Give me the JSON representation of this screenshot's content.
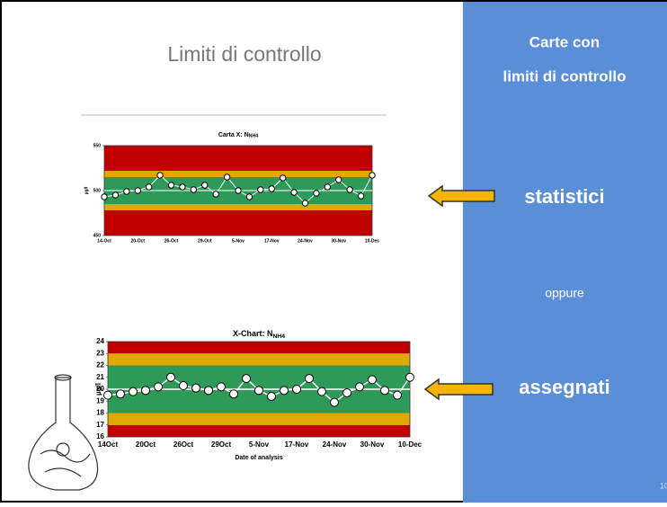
{
  "slide": {
    "title": "Limiti di controllo",
    "side_title_1": "Carte con",
    "side_title_2": "limiti di controllo",
    "option_1": "statistici",
    "separator": "oppure",
    "option_2": "assegnati",
    "page_number": "10"
  },
  "chart_data": [
    {
      "type": "line",
      "title": "Carta X: N",
      "title_sub": "NH4",
      "ylabel": "µg/l",
      "ylim": [
        450,
        550
      ],
      "yticks": [
        450,
        500,
        550
      ],
      "categories": [
        "14-Oct",
        null,
        null,
        "20-Oct",
        null,
        null,
        "26-Oct",
        null,
        null,
        "29-Oct",
        null,
        null,
        "5-Nov",
        null,
        null,
        "17-Nov",
        null,
        null,
        "24-Nov",
        null,
        null,
        "30-Nov",
        null,
        null,
        "10-Dec"
      ],
      "values": [
        493,
        495,
        499,
        500,
        504,
        517,
        506,
        504,
        501,
        506,
        496,
        515,
        500,
        493,
        501,
        502,
        514,
        498,
        486,
        497,
        504,
        512,
        501,
        494,
        517
      ],
      "center_line": 500,
      "bands": [
        {
          "from": 450,
          "to": 478,
          "color": "#c00000"
        },
        {
          "from": 478,
          "to": 485,
          "color": "#e0a800"
        },
        {
          "from": 485,
          "to": 515,
          "color": "#2e9a5a"
        },
        {
          "from": 515,
          "to": 522,
          "color": "#e0a800"
        },
        {
          "from": 522,
          "to": 550,
          "color": "#c00000"
        }
      ]
    },
    {
      "type": "line",
      "title": "X-Chart: N",
      "title_sub": "NH4",
      "ylabel": "µg/l",
      "xlabel": "Date of analysis",
      "ylim": [
        16,
        24
      ],
      "yticks": [
        16,
        17,
        18,
        19,
        20,
        21,
        22,
        23,
        24
      ],
      "categories": [
        "14Oct",
        null,
        null,
        "20Oct",
        null,
        null,
        "26Oct",
        null,
        null,
        "29Oct",
        null,
        null,
        "5-Nov",
        null,
        null,
        "17-Nov",
        null,
        null,
        "24-Nov",
        null,
        null,
        "30-Nov",
        null,
        null,
        "10-Dec"
      ],
      "values": [
        19.5,
        19.6,
        19.8,
        19.9,
        20.2,
        21,
        20.3,
        20.1,
        19.9,
        20.2,
        19.6,
        20.9,
        19.9,
        19.4,
        19.9,
        20,
        20.9,
        19.8,
        18.9,
        19.7,
        20.2,
        20.8,
        19.9,
        19.5,
        21
      ],
      "center_line": 20,
      "bands": [
        {
          "from": 16,
          "to": 17,
          "color": "#c00000"
        },
        {
          "from": 17,
          "to": 18,
          "color": "#e0a800"
        },
        {
          "from": 18,
          "to": 22,
          "color": "#2e9a5a"
        },
        {
          "from": 22,
          "to": 23,
          "color": "#e0a800"
        },
        {
          "from": 23,
          "to": 24,
          "color": "#c00000"
        }
      ]
    }
  ]
}
